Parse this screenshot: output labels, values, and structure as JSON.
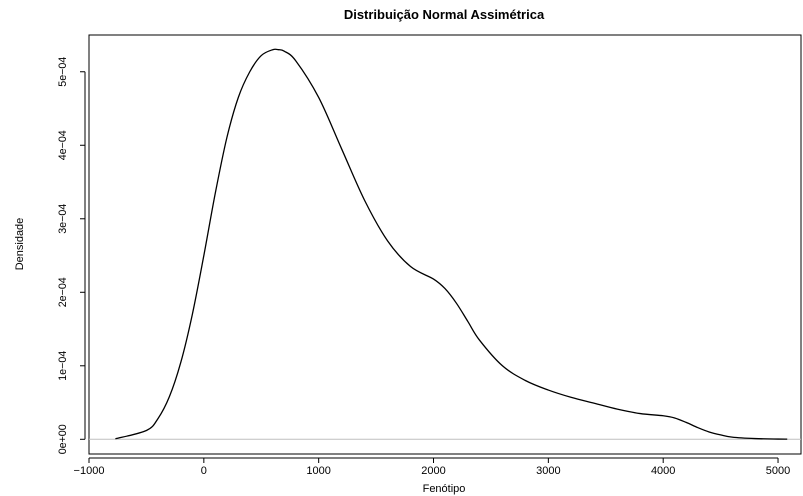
{
  "chart_data": {
    "type": "line",
    "title": "Distribuição Normal Assimétrica",
    "xlabel": "Fenótipo",
    "ylabel": "Densidade",
    "xlim": [
      -1000,
      5200
    ],
    "ylim": [
      -2e-05,
      0.00055
    ],
    "x_ticks": [
      -1000,
      0,
      1000,
      2000,
      3000,
      4000,
      5000
    ],
    "x_tick_labels": [
      "−1000",
      "0",
      "1000",
      "2000",
      "3000",
      "4000",
      "5000"
    ],
    "y_ticks": [
      0,
      0.0001,
      0.0002,
      0.0003,
      0.0004,
      0.0005
    ],
    "y_tick_labels": [
      "0e+00",
      "1e−04",
      "2e−04",
      "3e−04",
      "4e−04",
      "5e−04"
    ],
    "grid": false,
    "baseline": {
      "y": 0,
      "color": "#bfbfbf"
    },
    "series": [
      {
        "color": "#000000",
        "x": [
          -770,
          -500,
          -400,
          -300,
          -200,
          -100,
          0,
          100,
          200,
          300,
          400,
          500,
          600,
          650,
          700,
          800,
          1000,
          1200,
          1400,
          1600,
          1800,
          2000,
          2100,
          2200,
          2300,
          2400,
          2600,
          2800,
          3000,
          3200,
          3400,
          3600,
          3800,
          4000,
          4100,
          4200,
          4300,
          4400,
          4500,
          4600,
          4800,
          5000,
          5080
        ],
        "y": [
          7e-07,
          1.2e-05,
          2.8e-05,
          5.8e-05,
          0.000105,
          0.00017,
          0.00025,
          0.000335,
          0.00041,
          0.000465,
          0.0005,
          0.000522,
          0.00053,
          0.00053,
          0.000528,
          0.000515,
          0.000465,
          0.000395,
          0.000325,
          0.00027,
          0.000235,
          0.000218,
          0.000205,
          0.000185,
          0.00016,
          0.000135,
          0.0001,
          8e-05,
          6.7e-05,
          5.7e-05,
          4.9e-05,
          4.1e-05,
          3.5e-05,
          3.2e-05,
          2.9e-05,
          2.3e-05,
          1.6e-05,
          1e-05,
          6e-06,
          3e-06,
          1e-06,
          3e-07,
          2e-07
        ]
      }
    ]
  }
}
